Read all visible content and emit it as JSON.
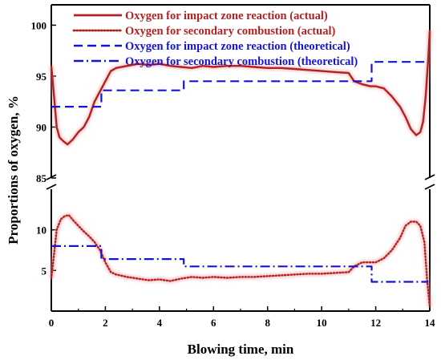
{
  "chart_data": {
    "type": "line",
    "xlabel": "Blowing time, min",
    "ylabel": "Proportions of oxygen, %",
    "xlim": [
      0,
      14
    ],
    "x_ticks": [
      "0",
      "2",
      "4",
      "6",
      "8",
      "10",
      "12",
      "14"
    ],
    "axis_break": true,
    "upper_panel": {
      "ylim": [
        85,
        102
      ],
      "y_ticks": [
        "85",
        "90",
        "95",
        "100"
      ]
    },
    "lower_panel": {
      "ylim": [
        0,
        15
      ],
      "y_ticks": [
        "5",
        "10"
      ]
    },
    "grid": false,
    "legend_position": "top",
    "series": [
      {
        "name": "Oxygen for impact zone reaction (actual)",
        "panel": "upper",
        "style": "solid",
        "color": "#b22222",
        "x": [
          0,
          0.1,
          0.2,
          0.3,
          0.45,
          0.6,
          0.8,
          1.0,
          1.2,
          1.4,
          1.6,
          1.8,
          2.0,
          2.2,
          2.4,
          2.8,
          3.2,
          3.6,
          4.0,
          4.4,
          4.8,
          5.2,
          5.6,
          6.0,
          6.5,
          7.0,
          7.5,
          8.0,
          8.5,
          9.0,
          9.5,
          10.0,
          10.5,
          11.0,
          11.2,
          11.5,
          11.8,
          12.0,
          12.3,
          12.6,
          12.9,
          13.1,
          13.3,
          13.5,
          13.65,
          13.75,
          13.85,
          13.95,
          14.0
        ],
        "y": [
          96,
          93,
          90,
          89,
          88.6,
          88.3,
          88.8,
          89.5,
          90,
          91,
          92.5,
          93.5,
          94.5,
          95.5,
          95.8,
          96,
          96.2,
          96.1,
          96.2,
          96,
          95.9,
          95.8,
          96,
          95.9,
          96,
          96,
          95.9,
          95.8,
          95.8,
          95.7,
          95.6,
          95.5,
          95.4,
          95.3,
          94.5,
          94.2,
          94,
          94,
          93.8,
          93,
          92,
          91,
          89.8,
          89.2,
          89.5,
          90.5,
          93,
          97,
          99.5
        ]
      },
      {
        "name": "Oxygen for secondary combustion (actual)",
        "panel": "lower",
        "style": "dotted",
        "color": "#b22222",
        "x": [
          0,
          0.1,
          0.2,
          0.35,
          0.5,
          0.65,
          0.8,
          1.0,
          1.2,
          1.4,
          1.6,
          1.8,
          2.0,
          2.2,
          2.4,
          2.8,
          3.2,
          3.6,
          4.0,
          4.4,
          4.8,
          5.2,
          5.6,
          6.0,
          6.5,
          7.0,
          7.5,
          8.0,
          8.5,
          9.0,
          9.5,
          10.0,
          10.5,
          11.0,
          11.2,
          11.5,
          11.8,
          12.0,
          12.3,
          12.6,
          12.9,
          13.1,
          13.3,
          13.5,
          13.65,
          13.8,
          13.9,
          14.0
        ],
        "y": [
          4,
          7,
          10,
          11.3,
          11.7,
          11.8,
          11.2,
          10.5,
          9.8,
          9.2,
          8.5,
          7.5,
          6,
          4.8,
          4.5,
          4.2,
          4,
          3.8,
          3.9,
          3.7,
          4,
          4.2,
          4.1,
          4.2,
          4.1,
          4.2,
          4.2,
          4.3,
          4.4,
          4.5,
          4.6,
          4.6,
          4.7,
          4.8,
          5.5,
          6,
          6,
          6,
          6.5,
          7.5,
          9,
          10.5,
          11,
          11,
          10.5,
          8.5,
          4,
          0.5
        ]
      },
      {
        "name": "Oxygen for impact zone reaction (theoretical)",
        "panel": "upper",
        "style": "dashed",
        "color": "#1515d0",
        "x": [
          0,
          1.85,
          1.85,
          4.9,
          4.9,
          11.85,
          11.85,
          13.95
        ],
        "y": [
          92,
          92,
          93.6,
          93.6,
          94.5,
          94.5,
          96.4,
          96.4
        ]
      },
      {
        "name": "Oxygen for secondary combustion (theoretical)",
        "panel": "lower",
        "style": "dashdot",
        "color": "#1515d0",
        "x": [
          0,
          1.85,
          1.85,
          4.9,
          4.9,
          11.85,
          11.85,
          13.95
        ],
        "y": [
          8,
          8,
          6.4,
          6.4,
          5.5,
          5.5,
          3.6,
          3.6
        ]
      }
    ]
  }
}
